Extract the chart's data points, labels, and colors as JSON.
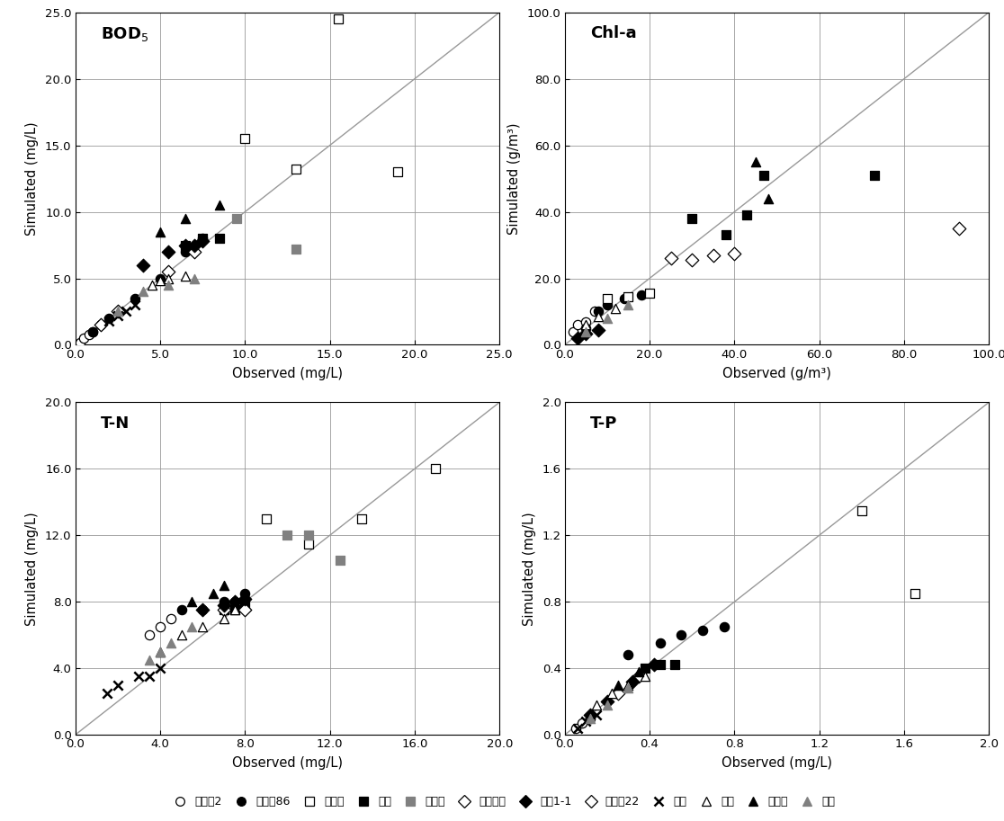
{
  "plots": [
    {
      "title": "BOD$_5$",
      "xlabel": "Observed (mg/L)",
      "ylabel": "Simulated (mg/L)",
      "xlim": [
        0,
        25
      ],
      "ylim": [
        0,
        25
      ],
      "xticks": [
        0.0,
        5.0,
        10.0,
        15.0,
        20.0,
        25.0
      ],
      "yticks": [
        0.0,
        5.0,
        10.0,
        15.0,
        20.0,
        25.0
      ]
    },
    {
      "title": "Chl-a",
      "xlabel": "Observed (g/m³)",
      "ylabel": "Simulated (g/m³)",
      "xlim": [
        0,
        100
      ],
      "ylim": [
        0,
        100
      ],
      "xticks": [
        0.0,
        20.0,
        40.0,
        60.0,
        80.0,
        100.0
      ],
      "yticks": [
        0.0,
        20.0,
        40.0,
        60.0,
        80.0,
        100.0
      ]
    },
    {
      "title": "T-N",
      "xlabel": "Observed (mg/L)",
      "ylabel": "Simulated (mg/L)",
      "xlim": [
        0,
        20
      ],
      "ylim": [
        0,
        20
      ],
      "xticks": [
        0.0,
        4.0,
        8.0,
        12.0,
        16.0,
        20.0
      ],
      "yticks": [
        0.0,
        4.0,
        8.0,
        12.0,
        16.0,
        20.0
      ]
    },
    {
      "title": "T-P",
      "xlabel": "Observed (mg/L)",
      "ylabel": "Simulated (mg/L)",
      "xlim": [
        0,
        2.0
      ],
      "ylim": [
        0,
        2.0
      ],
      "xticks": [
        0.0,
        0.4,
        0.8,
        1.2,
        1.6,
        2.0
      ],
      "yticks": [
        0.0,
        0.4,
        0.8,
        1.2,
        1.6,
        2.0
      ]
    }
  ],
  "series_styles": {
    "소양찹2": {
      "marker": "o",
      "facecolor": "white",
      "edgecolor": "black"
    },
    "전주찶86": {
      "marker": "o",
      "facecolor": "black",
      "edgecolor": "black"
    },
    "익산참": {
      "marker": "s",
      "facecolor": "white",
      "edgecolor": "black"
    },
    "김제": {
      "marker": "s",
      "facecolor": "black",
      "edgecolor": "black"
    },
    "용암참": {
      "marker": "s",
      "facecolor": "#808080",
      "edgecolor": "#808080"
    },
    "만경대교": {
      "marker": "D",
      "facecolor": "white",
      "edgecolor": "black"
    },
    "삼찼1-1": {
      "marker": "D",
      "facecolor": "black",
      "edgecolor": "black"
    },
    "전주참22": {
      "marker": "D",
      "facecolor": "white",
      "edgecolor": "black"
    },
    "전주": {
      "marker": "x",
      "facecolor": "black",
      "edgecolor": "black"
    },
    "삼레": {
      "marker": "^",
      "facecolor": "white",
      "edgecolor": "black"
    },
    "마산참": {
      "marker": "^",
      "facecolor": "black",
      "edgecolor": "black"
    },
    "탑참": {
      "marker": "^",
      "facecolor": "#808080",
      "edgecolor": "#808080"
    }
  },
  "legend_order": [
    "소양찹2",
    "전주찶86",
    "익산참",
    "김제",
    "용암참",
    "만경대교",
    "삼찼1-1",
    "전주참22",
    "전주",
    "삼레",
    "마산참",
    "탑참"
  ],
  "legend_labels": [
    "소양찹2",
    "전주찶86",
    "익산참",
    "김제",
    "용암참",
    "만경대교",
    "삼찼1-1",
    "전주참22",
    "전주",
    "삼레",
    "마산참",
    "탑참"
  ],
  "BOD5": {
    "소양찹2": {
      "obs": [
        0.3,
        0.5,
        0.8,
        1.0
      ],
      "sim": [
        0.2,
        0.5,
        0.8,
        1.0
      ]
    },
    "전주찶86": {
      "obs": [
        1.0,
        1.5,
        2.0,
        3.5,
        5.0,
        6.5,
        7.5
      ],
      "sim": [
        1.0,
        1.5,
        2.0,
        3.5,
        5.0,
        7.0,
        8.0
      ]
    },
    "익산참": {
      "obs": [
        10.0,
        13.0,
        15.5,
        19.0
      ],
      "sim": [
        15.5,
        13.2,
        24.5,
        13.0
      ]
    },
    "김제": {
      "obs": [
        6.5,
        7.5,
        8.5
      ],
      "sim": [
        7.5,
        8.0,
        8.0
      ]
    },
    "용암참": {
      "obs": [
        9.5,
        13.0
      ],
      "sim": [
        9.5,
        7.2
      ]
    },
    "만경대교": {
      "obs": [
        5.5,
        7.0
      ],
      "sim": [
        5.5,
        7.0
      ]
    },
    "삼찼1-1": {
      "obs": [
        4.0,
        5.5,
        6.5,
        7.0,
        7.5
      ],
      "sim": [
        6.0,
        7.0,
        7.5,
        7.5,
        7.8
      ]
    },
    "전주참22": {
      "obs": [
        1.5,
        2.5
      ],
      "sim": [
        1.5,
        2.5
      ]
    },
    "전주": {
      "obs": [
        2.0,
        2.5,
        3.0,
        3.5
      ],
      "sim": [
        1.8,
        2.2,
        2.5,
        3.0
      ]
    },
    "삼레": {
      "obs": [
        4.5,
        5.0,
        5.5,
        6.5
      ],
      "sim": [
        4.5,
        4.8,
        5.0,
        5.2
      ]
    },
    "마산참": {
      "obs": [
        5.0,
        6.5,
        8.5
      ],
      "sim": [
        8.5,
        9.5,
        10.5
      ]
    },
    "탑참": {
      "obs": [
        2.5,
        4.0,
        5.5,
        7.0
      ],
      "sim": [
        2.5,
        4.0,
        4.5,
        5.0
      ]
    }
  },
  "Chla": {
    "소양찹2": {
      "obs": [
        2.0,
        3.0,
        5.0,
        7.0
      ],
      "sim": [
        4.0,
        6.0,
        7.0,
        10.0
      ]
    },
    "전주찶86": {
      "obs": [
        5.0,
        8.0,
        10.0,
        14.0,
        18.0
      ],
      "sim": [
        5.0,
        10.0,
        12.0,
        14.0,
        15.0
      ]
    },
    "익산참": {
      "obs": [
        10.0,
        15.0,
        20.0
      ],
      "sim": [
        14.0,
        14.5,
        15.5
      ]
    },
    "김제": {
      "obs": [
        30.0,
        38.0,
        43.0,
        47.0,
        73.0
      ],
      "sim": [
        38.0,
        33.0,
        39.0,
        51.0,
        51.0
      ]
    },
    "용암참": {
      "obs": [],
      "sim": []
    },
    "만경대교": {
      "obs": [
        25.0,
        30.0,
        35.0,
        40.0,
        93.0
      ],
      "sim": [
        26.0,
        25.5,
        27.0,
        27.5,
        35.0
      ]
    },
    "삼찼1-1": {
      "obs": [
        3.0,
        5.0,
        8.0
      ],
      "sim": [
        2.0,
        3.5,
        4.5
      ]
    },
    "전주참22": {
      "obs": [],
      "sim": []
    },
    "전주": {
      "obs": [],
      "sim": []
    },
    "삼레": {
      "obs": [
        5.0,
        8.0,
        12.0
      ],
      "sim": [
        6.0,
        8.5,
        11.0
      ]
    },
    "마산참": {
      "obs": [
        45.0,
        48.0
      ],
      "sim": [
        55.0,
        44.0
      ]
    },
    "탑참": {
      "obs": [
        5.0,
        10.0,
        15.0
      ],
      "sim": [
        4.0,
        8.0,
        12.0
      ]
    }
  },
  "TN": {
    "소양찹2": {
      "obs": [
        3.5,
        4.0,
        4.5
      ],
      "sim": [
        6.0,
        6.5,
        7.0
      ]
    },
    "전주찶86": {
      "obs": [
        5.0,
        6.0,
        7.0,
        7.5,
        8.0
      ],
      "sim": [
        7.5,
        7.5,
        8.0,
        8.0,
        8.5
      ]
    },
    "익산참": {
      "obs": [
        9.0,
        11.0,
        13.5,
        17.0
      ],
      "sim": [
        13.0,
        11.5,
        13.0,
        16.0
      ]
    },
    "김제": {
      "obs": [
        7.0,
        7.5,
        8.0
      ],
      "sim": [
        7.5,
        7.5,
        7.8
      ]
    },
    "용암참": {
      "obs": [
        10.0,
        11.0,
        12.5
      ],
      "sim": [
        12.0,
        12.0,
        10.5
      ]
    },
    "만경대교": {
      "obs": [
        7.0,
        8.0
      ],
      "sim": [
        7.5,
        7.5
      ]
    },
    "삼찼1-1": {
      "obs": [
        6.0,
        7.0,
        7.5,
        8.0
      ],
      "sim": [
        7.5,
        7.8,
        8.0,
        8.2
      ]
    },
    "전주참22": {
      "obs": [],
      "sim": []
    },
    "전주": {
      "obs": [
        1.5,
        2.0,
        3.0,
        3.5,
        4.0
      ],
      "sim": [
        2.5,
        3.0,
        3.5,
        3.5,
        4.0
      ]
    },
    "삼레": {
      "obs": [
        4.0,
        5.0,
        6.0,
        7.0,
        7.5
      ],
      "sim": [
        5.0,
        6.0,
        6.5,
        7.0,
        7.5
      ]
    },
    "마산참": {
      "obs": [
        5.5,
        6.5,
        7.0
      ],
      "sim": [
        8.0,
        8.5,
        9.0
      ]
    },
    "탑참": {
      "obs": [
        3.5,
        4.0,
        4.5,
        5.5
      ],
      "sim": [
        4.5,
        5.0,
        5.5,
        6.5
      ]
    }
  },
  "TP": {
    "소양찹2": {
      "obs": [
        0.05,
        0.08,
        0.12
      ],
      "sim": [
        0.04,
        0.07,
        0.1
      ]
    },
    "전주찶86": {
      "obs": [
        0.3,
        0.45,
        0.55,
        0.65,
        0.75
      ],
      "sim": [
        0.48,
        0.55,
        0.6,
        0.63,
        0.65
      ]
    },
    "익산참": {
      "obs": [
        1.4,
        1.65
      ],
      "sim": [
        1.35,
        0.85
      ]
    },
    "김제": {
      "obs": [
        0.38,
        0.45,
        0.52
      ],
      "sim": [
        0.4,
        0.42,
        0.42
      ]
    },
    "용암참": {
      "obs": [],
      "sim": []
    },
    "만경대교": {
      "obs": [
        0.25,
        0.35
      ],
      "sim": [
        0.25,
        0.35
      ]
    },
    "삼찼1-1": {
      "obs": [
        0.12,
        0.2,
        0.32,
        0.42
      ],
      "sim": [
        0.12,
        0.2,
        0.32,
        0.42
      ]
    },
    "전주참22": {
      "obs": [],
      "sim": []
    },
    "전주": {
      "obs": [
        0.06,
        0.1,
        0.15
      ],
      "sim": [
        0.04,
        0.08,
        0.12
      ]
    },
    "삼레": {
      "obs": [
        0.15,
        0.22,
        0.3,
        0.38
      ],
      "sim": [
        0.18,
        0.25,
        0.3,
        0.35
      ]
    },
    "마산참": {
      "obs": [
        0.25,
        0.35
      ],
      "sim": [
        0.3,
        0.38
      ]
    },
    "탑참": {
      "obs": [
        0.12,
        0.2,
        0.3
      ],
      "sim": [
        0.1,
        0.18,
        0.28
      ]
    }
  }
}
